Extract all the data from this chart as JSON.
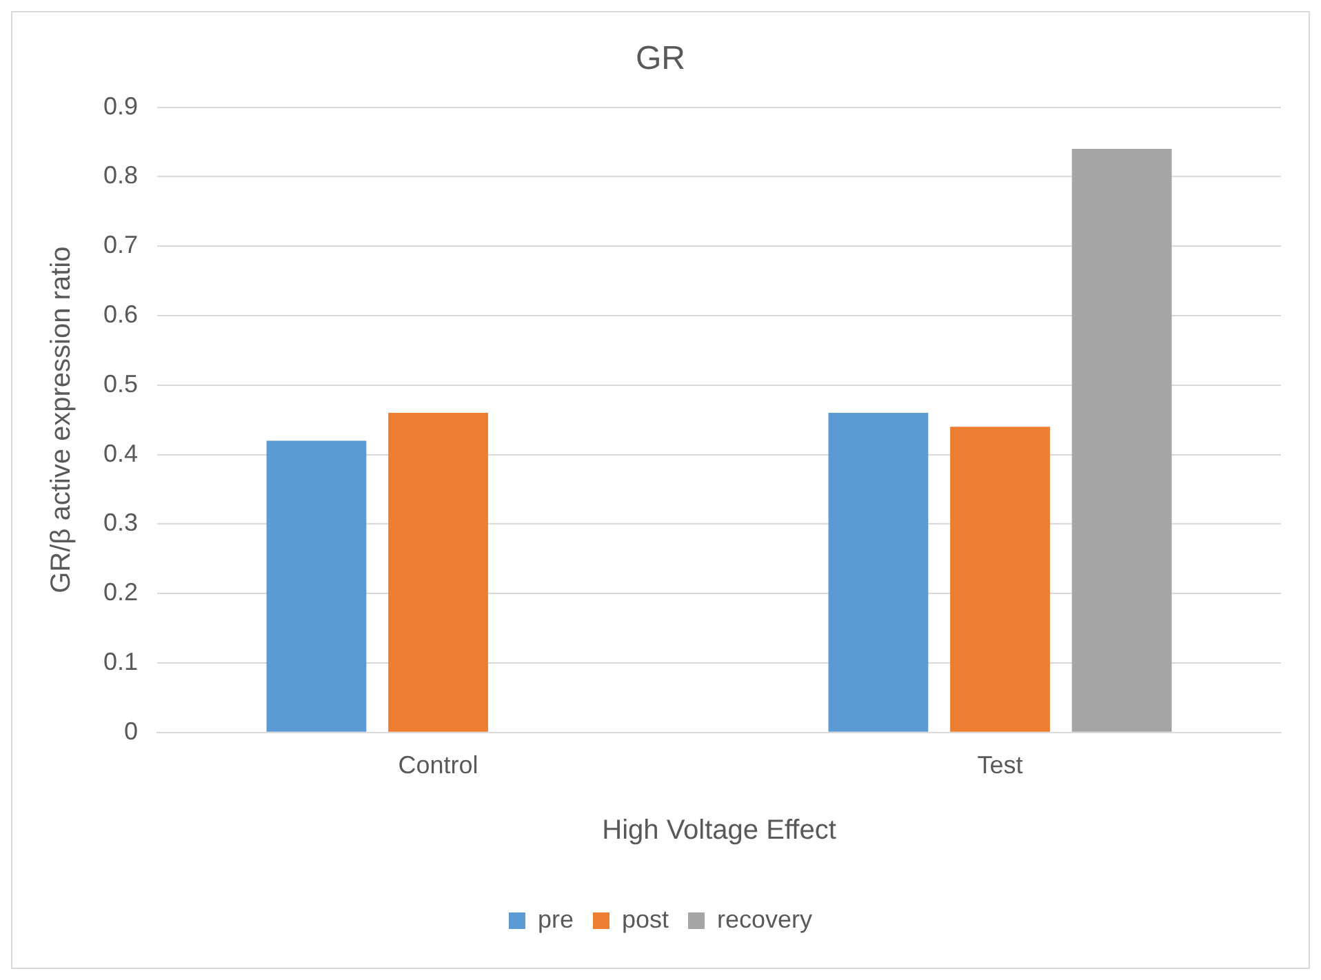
{
  "chart_data": {
    "type": "bar",
    "title": "GR",
    "xlabel": "High Voltage Effect",
    "ylabel": "GR/β active expression ratio",
    "categories": [
      "Control",
      "Test"
    ],
    "series": [
      {
        "name": "pre",
        "color": "#5b9bd5",
        "values": [
          0.42,
          0.46
        ]
      },
      {
        "name": "post",
        "color": "#ed7d31",
        "values": [
          0.46,
          0.44
        ]
      },
      {
        "name": "recovery",
        "color": "#a5a5a5",
        "values": [
          null,
          0.84
        ]
      }
    ],
    "ylim": [
      0,
      0.9
    ],
    "yticks": [
      0,
      0.1,
      0.2,
      0.3,
      0.4,
      0.5,
      0.6,
      0.7,
      0.8,
      0.9
    ],
    "grid": "y",
    "legend": "bottom"
  }
}
